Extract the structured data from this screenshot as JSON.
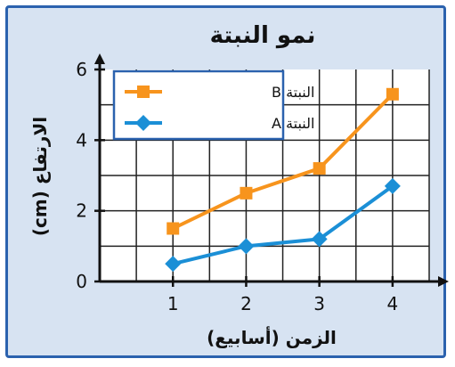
{
  "chart_data": {
    "type": "line",
    "title": "نمو النبتة",
    "xlabel": "الزمن (أسابيع)",
    "ylabel": "الارتفاع (cm)",
    "x": [
      1,
      2,
      3,
      4
    ],
    "xlim": [
      0,
      4.5
    ],
    "ylim": [
      0,
      6
    ],
    "xticks": [
      "1",
      "2",
      "3",
      "4"
    ],
    "yticks": [
      "0",
      "2",
      "4",
      "6"
    ],
    "grid": true,
    "legend_position": "top-left",
    "series": [
      {
        "name": "النبتة B",
        "values": [
          1.5,
          2.5,
          3.2,
          5.3
        ],
        "color": "#f7941d",
        "marker": "square"
      },
      {
        "name": "النبتة A",
        "values": [
          0.5,
          1.0,
          1.2,
          2.7
        ],
        "color": "#1b8fd6",
        "marker": "diamond"
      }
    ]
  }
}
